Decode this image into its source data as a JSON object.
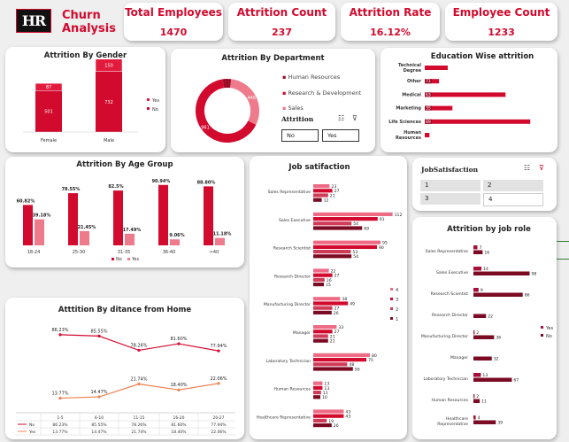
{
  "brand": {
    "logo": "HR",
    "title_line1": "Churn",
    "title_line2": "Analysis"
  },
  "kpis": [
    {
      "label": "Total Employees",
      "value": "1470"
    },
    {
      "label": "Attrition Count",
      "value": "237"
    },
    {
      "label": "Attrition Rate",
      "value": "16.12%"
    },
    {
      "label": "Employee Count",
      "value": "1233"
    }
  ],
  "colors": {
    "no": "#d20a2e",
    "yes": "#ee7b8c",
    "dark": "#7b0a23",
    "mid": "#e0546c",
    "accent": "#d20a2e"
  },
  "gender": {
    "title": "Attrition By Gender",
    "legend": [
      "Yes",
      "No"
    ]
  },
  "department": {
    "title": "Attrition By Department",
    "legend": [
      "Human Resources",
      "Research & Development",
      "Sales"
    ]
  },
  "attrition_slicer": {
    "title": "Attrition",
    "options": [
      "No",
      "Yes"
    ],
    "icons": [
      "multi-select-icon",
      "clear-filter-icon"
    ]
  },
  "education": {
    "title": "Education Wise attrition"
  },
  "age": {
    "title": "Attrition By Age Group",
    "legend": [
      "No",
      "Yes"
    ]
  },
  "distance": {
    "title": "Atttition By ditance from Home",
    "table_labels": [
      "No",
      "Yes"
    ]
  },
  "jobsat": {
    "title": "Job satifaction",
    "legend": [
      "4",
      "3",
      "2",
      "1"
    ]
  },
  "jobsat_slicer": {
    "title": "JobSatisfaction",
    "options": [
      "1",
      "2",
      "3",
      "4"
    ]
  },
  "role": {
    "title": "Attrition by job role",
    "legend": [
      "Yes",
      "No"
    ]
  },
  "chart_data": [
    {
      "id": "gender",
      "type": "bar",
      "title": "Attrition By Gender",
      "categories": [
        "Female",
        "Male"
      ],
      "series": [
        {
          "name": "No",
          "values": [
            501,
            732
          ]
        },
        {
          "name": "Yes",
          "values": [
            87,
            150
          ]
        }
      ],
      "stacked": true,
      "legend": "right"
    },
    {
      "id": "department",
      "type": "pie",
      "title": "Attrition By Department",
      "donut": true,
      "labels": [
        "Human Resources",
        "Research & Development",
        "Sales"
      ],
      "values": [
        63,
        446,
        961
      ],
      "legend": "right"
    },
    {
      "id": "education",
      "type": "bar",
      "orientation": "horizontal",
      "stacked": true,
      "title": "Education Wise attrition",
      "categories": [
        "Technical Degree",
        "Other",
        "Medical",
        "Marketing",
        "Life Sciences",
        "Human Resources"
      ],
      "segment_labels": [
        [
          "",
          ""
        ],
        [
          "71",
          ""
        ],
        [
          "63",
          ""
        ],
        [
          "35",
          ""
        ],
        [
          "89",
          ""
        ],
        [
          "",
          ""
        ]
      ],
      "values": [
        132,
        82,
        464,
        159,
        606,
        27
      ]
    },
    {
      "id": "age",
      "type": "bar",
      "title": "Attrition By Age Group",
      "categories": [
        "18-24",
        "25-30",
        "31-35",
        "36-40",
        ">40"
      ],
      "series": [
        {
          "name": "No",
          "values": [
            60.82,
            78.55,
            82.5,
            90.94,
            88.8
          ],
          "labels": [
            "60.82%",
            "78.55%",
            "82.5%",
            "90.94%",
            "88.80%"
          ]
        },
        {
          "name": "Yes",
          "values": [
            39.18,
            21.45,
            17.49,
            9.06,
            11.18
          ],
          "labels": [
            "39.18%",
            "21.45%",
            "17.49%",
            "9.06%",
            "11.18%"
          ]
        }
      ],
      "legend": "bottom"
    },
    {
      "id": "distance",
      "type": "line",
      "title": "Atttition By ditance from Home",
      "categories": [
        "1-5",
        "6-10",
        "11-15",
        "16-20",
        "20-27"
      ],
      "series": [
        {
          "name": "No",
          "values": [
            86.23,
            85.55,
            78.26,
            81.6,
            77.94
          ],
          "labels": [
            "86.23%",
            "85.55%",
            "78.26%",
            "81.60%",
            "77.94%"
          ]
        },
        {
          "name": "Yes",
          "values": [
            13.77,
            14.47,
            21.74,
            18.4,
            22.06
          ],
          "labels": [
            "13.77%",
            "14.47%",
            "21.74%",
            "18.40%",
            "22.06%"
          ]
        }
      ]
    },
    {
      "id": "jobsat",
      "type": "bar",
      "orientation": "horizontal",
      "title": "Job satifaction",
      "categories": [
        "Sales Representative",
        "Sales Executive",
        "Research Scientist",
        "Research Director",
        "Manufacturing Director",
        "Manager",
        "Laboratory Technician",
        "Human Resources",
        "Healthcare Representative"
      ],
      "series": [
        {
          "name": "4",
          "values": [
            23,
            112,
            95,
            22,
            38,
            33,
            80,
            13,
            43
          ]
        },
        {
          "name": "3",
          "values": [
            27,
            91,
            90,
            27,
            49,
            27,
            75,
            13,
            43
          ]
        },
        {
          "name": "2",
          "values": [
            21,
            54,
            53,
            16,
            27,
            21,
            48,
            11,
            19
          ]
        },
        {
          "name": "1",
          "values": [
            12,
            69,
            54,
            15,
            26,
            21,
            56,
            10,
            26
          ]
        }
      ],
      "legend": "right"
    },
    {
      "id": "role",
      "type": "bar",
      "orientation": "horizontal",
      "title": "Attrition by job role",
      "categories": [
        "Sales Representative",
        "Sales Executive",
        "Research Scientist",
        "Research Director",
        "Manufacturing Director",
        "Manager",
        "Laboratory Technician",
        "Human Resources",
        "Healthcare Representative"
      ],
      "series": [
        {
          "name": "Yes",
          "values": [
            7,
            14,
            9,
            null,
            2,
            null,
            13,
            2,
            4
          ]
        },
        {
          "name": "No",
          "values": [
            16,
            98,
            86,
            22,
            36,
            32,
            67,
            11,
            39
          ]
        }
      ],
      "legend": "right"
    }
  ]
}
